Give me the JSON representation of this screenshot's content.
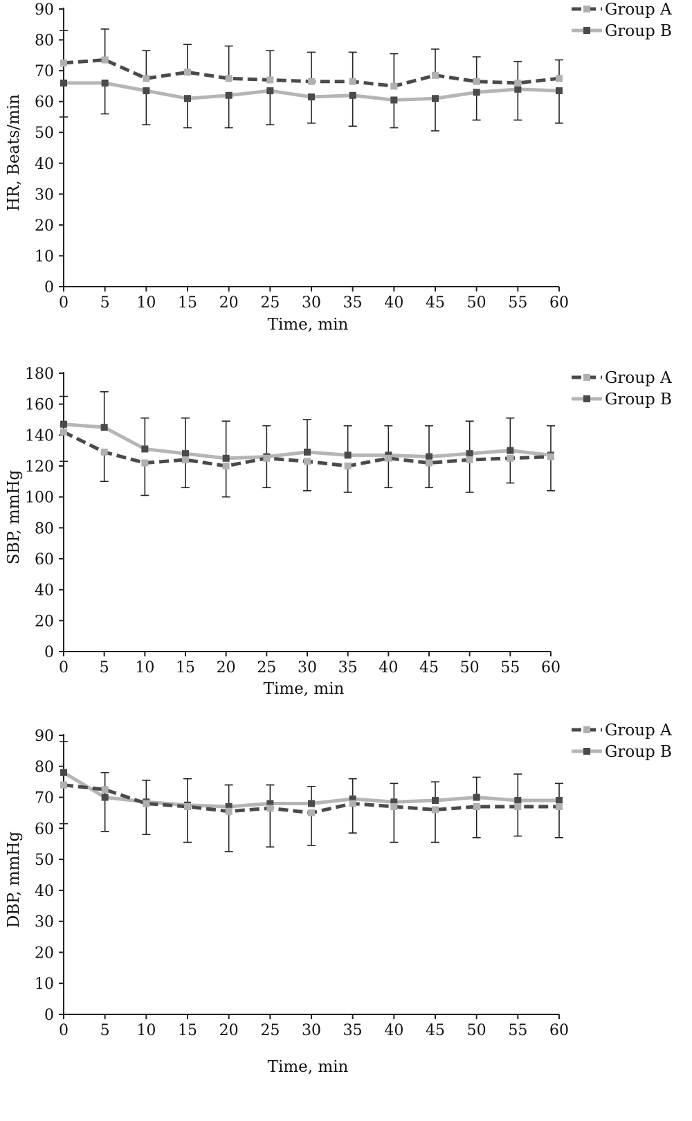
{
  "chart_data": [
    {
      "type": "line",
      "xlabel": "Time, min",
      "ylabel": "HR, Beats/min",
      "ylim": [
        0,
        90
      ],
      "yticks": [
        0,
        10,
        20,
        30,
        40,
        50,
        60,
        70,
        80,
        90
      ],
      "x": [
        0,
        5,
        10,
        15,
        20,
        25,
        30,
        35,
        40,
        45,
        50,
        55,
        60
      ],
      "legend_position": "top-right",
      "series": [
        {
          "name": "Group A",
          "style": "dashed",
          "color": "#4a4a4a",
          "marker_color": "#b0b0b0",
          "values": [
            72.5,
            73.5,
            67.5,
            69.5,
            67.5,
            67,
            66.5,
            66.5,
            65,
            68.5,
            66.5,
            66,
            67.5
          ],
          "error_upper": [
            83,
            83.5,
            76.5,
            78.5,
            78,
            76.5,
            76,
            76,
            75.5,
            77,
            74.5,
            73,
            73.5
          ]
        },
        {
          "name": "Group B",
          "style": "solid",
          "color": "#b5b5b5",
          "marker_color": "#4a4a4a",
          "values": [
            66,
            66,
            63.5,
            61,
            62,
            63.5,
            61.5,
            62,
            60.5,
            61,
            63,
            64,
            63.5
          ],
          "error_lower": [
            55,
            56,
            52.5,
            51.5,
            51.5,
            52.5,
            53,
            52,
            51.5,
            50.5,
            54,
            54,
            53
          ]
        }
      ]
    },
    {
      "type": "line",
      "xlabel": "Time, min",
      "ylabel": "SBP, mmHg",
      "ylim": [
        0,
        180
      ],
      "yticks": [
        0,
        20,
        40,
        60,
        80,
        100,
        120,
        140,
        160,
        180
      ],
      "x": [
        0,
        5,
        10,
        15,
        20,
        25,
        30,
        35,
        40,
        45,
        50,
        55,
        60
      ],
      "legend_position": "top-right",
      "series": [
        {
          "name": "Group A",
          "style": "dashed",
          "color": "#4a4a4a",
          "marker_color": "#b0b0b0",
          "values": [
            142,
            129,
            122,
            124,
            120,
            125,
            123,
            120,
            125,
            122,
            124,
            125,
            126
          ],
          "error_lower": [
            123,
            110,
            101,
            106,
            100,
            106,
            104,
            103,
            106,
            106,
            103,
            109,
            104
          ]
        },
        {
          "name": "Group B",
          "style": "solid",
          "color": "#b5b5b5",
          "marker_color": "#4a4a4a",
          "values": [
            147,
            145,
            131,
            128,
            125,
            126,
            129,
            127,
            127,
            126,
            128,
            130,
            127
          ],
          "error_upper": [
            165,
            168,
            151,
            151,
            149,
            146,
            150,
            146,
            146,
            146,
            149,
            151,
            146
          ]
        }
      ]
    },
    {
      "type": "line",
      "xlabel": "Time, min",
      "ylabel": "DBP, mmHg",
      "ylim": [
        0,
        90
      ],
      "yticks": [
        0,
        10,
        20,
        30,
        40,
        50,
        60,
        70,
        80,
        90
      ],
      "x": [
        0,
        5,
        10,
        15,
        20,
        25,
        30,
        35,
        40,
        45,
        50,
        55,
        60
      ],
      "legend_position": "top-right",
      "series": [
        {
          "name": "Group A",
          "style": "dashed",
          "color": "#4a4a4a",
          "marker_color": "#b0b0b0",
          "values": [
            74,
            72.5,
            68,
            67,
            65.5,
            66.5,
            65,
            68,
            67,
            66,
            67,
            67,
            67
          ],
          "error_lower": [
            61.5,
            59,
            58,
            55.5,
            52.5,
            54,
            54.5,
            58.5,
            55.5,
            55.5,
            57,
            57.5,
            57
          ]
        },
        {
          "name": "Group B",
          "style": "solid",
          "color": "#b5b5b5",
          "marker_color": "#4a4a4a",
          "values": [
            78,
            70,
            68.5,
            67.5,
            67,
            68,
            68,
            69.5,
            68.5,
            69,
            70,
            69,
            69
          ],
          "error_upper": [
            88,
            78,
            75.5,
            76,
            74,
            74,
            73.5,
            76,
            74.5,
            75,
            76.5,
            77.5,
            74.5
          ]
        }
      ]
    }
  ]
}
